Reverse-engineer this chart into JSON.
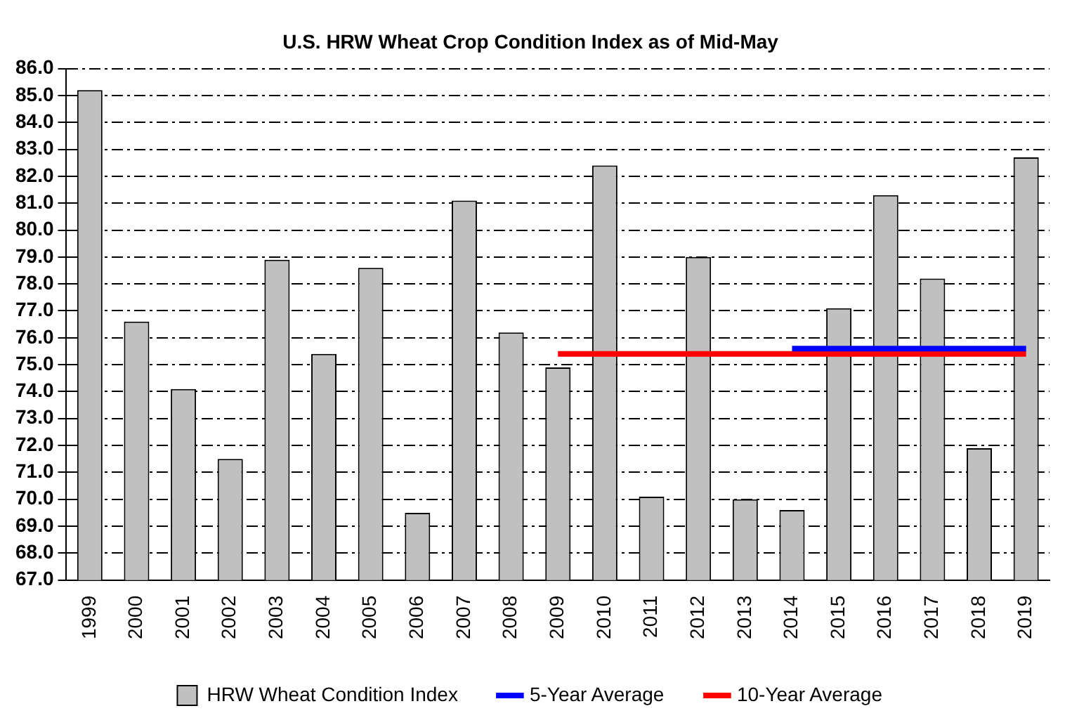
{
  "chart_data": {
    "type": "bar",
    "title": "U.S. HRW Wheat Crop Condition Index as of Mid-May",
    "categories": [
      "1999",
      "2000",
      "2001",
      "2002",
      "2003",
      "2004",
      "2005",
      "2006",
      "2007",
      "2008",
      "2009",
      "2010",
      "2011",
      "2012",
      "2013",
      "2014",
      "2015",
      "2016",
      "2017",
      "2018",
      "2019"
    ],
    "series": [
      {
        "name": "HRW Wheat Condition Index",
        "color": "#c0c0c0",
        "values": [
          85.2,
          76.6,
          74.1,
          71.5,
          78.9,
          75.4,
          78.6,
          69.5,
          81.1,
          76.2,
          74.9,
          82.4,
          70.1,
          79.0,
          70.0,
          69.6,
          77.1,
          81.3,
          78.2,
          71.9,
          82.7
        ]
      },
      {
        "name": "5-Year Average",
        "type": "line",
        "color": "#0000ff",
        "values": [
          null,
          null,
          null,
          null,
          null,
          null,
          null,
          null,
          null,
          null,
          null,
          null,
          null,
          null,
          null,
          75.6,
          75.6,
          75.6,
          75.6,
          75.6,
          75.6
        ]
      },
      {
        "name": "10-Year Average",
        "type": "line",
        "color": "#ff0000",
        "values": [
          null,
          null,
          null,
          null,
          null,
          null,
          null,
          null,
          null,
          null,
          75.4,
          75.4,
          75.4,
          75.4,
          75.4,
          75.4,
          75.4,
          75.4,
          75.4,
          75.4,
          75.4
        ]
      }
    ],
    "ylim": [
      67,
      86
    ],
    "yticks": [
      {
        "value": 67,
        "label": "67.0"
      },
      {
        "value": 68,
        "label": "68.0"
      },
      {
        "value": 69,
        "label": "69.0"
      },
      {
        "value": 70,
        "label": "70.0"
      },
      {
        "value": 71,
        "label": "71.0"
      },
      {
        "value": 72,
        "label": "72.0"
      },
      {
        "value": 73,
        "label": "73.0"
      },
      {
        "value": 74,
        "label": "74.0"
      },
      {
        "value": 75,
        "label": "75.0"
      },
      {
        "value": 76,
        "label": "76.0"
      },
      {
        "value": 77,
        "label": "77.0"
      },
      {
        "value": 78,
        "label": "78.0"
      },
      {
        "value": 79,
        "label": "79.0"
      },
      {
        "value": 80,
        "label": "80.0"
      },
      {
        "value": 81,
        "label": "81.0"
      },
      {
        "value": 82,
        "label": "82.0"
      },
      {
        "value": 83,
        "label": "83.0"
      },
      {
        "value": 84,
        "label": "84.0"
      },
      {
        "value": 85,
        "label": "85.0"
      },
      {
        "value": 86,
        "label": "86.0"
      }
    ],
    "grid": "y",
    "legend": "bottom",
    "marker": "none",
    "line_style": "solid"
  }
}
